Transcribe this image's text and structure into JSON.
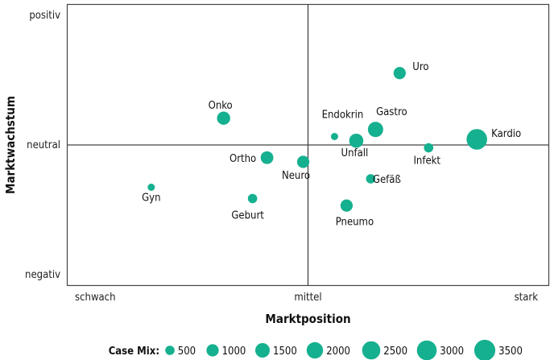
{
  "chart_data": {
    "type": "scatter",
    "title": "",
    "xlabel": "Marktposition",
    "ylabel": "Marktwachstum",
    "x_ticks": [
      "schwach",
      "mittel",
      "stark"
    ],
    "y_ticks": [
      "positiv",
      "neutral",
      "negativ"
    ],
    "xlim": [
      0,
      2
    ],
    "ylim": [
      -1,
      1
    ],
    "grid": false,
    "color": "#15b08f",
    "points": [
      {
        "label": "Uro",
        "x": 1.38,
        "y": 0.51,
        "size": 1000
      },
      {
        "label": "Onko",
        "x": 0.65,
        "y": 0.19,
        "size": 1200
      },
      {
        "label": "Endokrin",
        "x": 1.11,
        "y": 0.06,
        "size": 250
      },
      {
        "label": "Gastro",
        "x": 1.28,
        "y": 0.11,
        "size": 1700
      },
      {
        "label": "Kardio",
        "x": 1.7,
        "y": 0.04,
        "size": 3300
      },
      {
        "label": "Unfall",
        "x": 1.2,
        "y": 0.03,
        "size": 1400
      },
      {
        "label": "Infekt",
        "x": 1.5,
        "y": -0.02,
        "size": 500
      },
      {
        "label": "Ortho",
        "x": 0.83,
        "y": -0.09,
        "size": 1100
      },
      {
        "label": "Neuro",
        "x": 0.98,
        "y": -0.12,
        "size": 1000
      },
      {
        "label": "Gefäß",
        "x": 1.26,
        "y": -0.24,
        "size": 500
      },
      {
        "label": "Gyn",
        "x": 0.35,
        "y": -0.3,
        "size": 250
      },
      {
        "label": "Geburt",
        "x": 0.77,
        "y": -0.38,
        "size": 500
      },
      {
        "label": "Pneumo",
        "x": 1.16,
        "y": -0.43,
        "size": 1000
      }
    ],
    "legend": {
      "title": "Case Mix:",
      "placement": "bottom",
      "sizes": [
        500,
        1000,
        1500,
        2000,
        2500,
        3000,
        3500
      ]
    }
  }
}
